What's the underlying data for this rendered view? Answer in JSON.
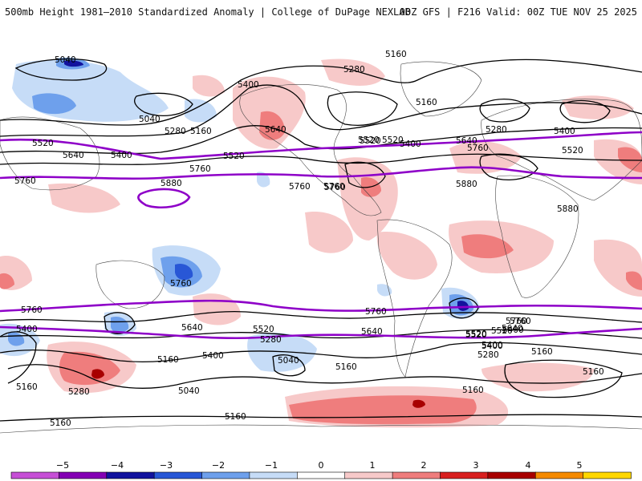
{
  "header": {
    "title": "500mb Height 1981–2010 Standardized Anomaly | College of DuPage NEXLAB",
    "run_info": "00Z GFS | F216 Valid: 00Z TUE NOV 25 2025"
  },
  "colors": {
    "ocean_land": "#ffffff",
    "contour_black": "#000000",
    "contour_purple": "#8e00c8",
    "anom_pos_1": "#f7c9c9",
    "anom_pos_2": "#ef7d7d",
    "anom_pos_3": "#d81f1f",
    "anom_pos_4": "#a80000",
    "anom_neg_1": "#c6dcf7",
    "anom_neg_2": "#6ea0ec",
    "anom_neg_3": "#2857d6",
    "anom_neg_4": "#12139e"
  },
  "contour_labels": [
    {
      "text": "5040",
      "id": "lbl-5040-a"
    },
    {
      "text": "5160",
      "id": "lbl-5160-a"
    },
    {
      "text": "5280",
      "id": "lbl-5280-a"
    },
    {
      "text": "5400",
      "id": "lbl-5400-a"
    },
    {
      "text": "5160",
      "id": "lbl-5160-b"
    },
    {
      "text": "5040",
      "id": "lbl-5040-b"
    },
    {
      "text": "5280",
      "id": "lbl-5280-b"
    },
    {
      "text": "5160",
      "id": "lbl-5160-c"
    },
    {
      "text": "5640",
      "id": "lbl-5640-a"
    },
    {
      "text": "5520",
      "id": "lbl-5520-a"
    },
    {
      "text": "5520",
      "id": "lbl-5520-b"
    },
    {
      "text": "5400",
      "id": "lbl-5400-b"
    },
    {
      "text": "5640",
      "id": "lbl-5640-b"
    },
    {
      "text": "5400",
      "id": "lbl-5400-c"
    },
    {
      "text": "5520",
      "id": "lbl-5520-c"
    },
    {
      "text": "5760",
      "id": "lbl-5760-a"
    },
    {
      "text": "5520",
      "id": "lbl-5520-d"
    },
    {
      "text": "5760",
      "id": "lbl-5760-b"
    },
    {
      "text": "5880",
      "id": "lbl-5880-a"
    },
    {
      "text": "5760",
      "id": "lbl-5760-c"
    },
    {
      "text": "5760",
      "id": "lbl-5760-d"
    },
    {
      "text": "5880",
      "id": "lbl-5880-b"
    },
    {
      "text": "5520",
      "id": "lbl-5520-e"
    },
    {
      "text": "5400",
      "id": "lbl-5400-d"
    },
    {
      "text": "5280",
      "id": "lbl-5280-c"
    },
    {
      "text": "5640",
      "id": "lbl-5640-c"
    },
    {
      "text": "5760",
      "id": "lbl-5760-e"
    },
    {
      "text": "5760",
      "id": "lbl-5760-f"
    },
    {
      "text": "5880",
      "id": "lbl-5880-c"
    },
    {
      "text": "5520",
      "id": "lbl-5520-f"
    },
    {
      "text": "5400",
      "id": "lbl-5400-e"
    },
    {
      "text": "5760",
      "id": "lbl-5760-g"
    },
    {
      "text": "5760",
      "id": "lbl-5760-h"
    },
    {
      "text": "5760",
      "id": "lbl-5760-i"
    },
    {
      "text": "5760",
      "id": "lbl-5760-j"
    },
    {
      "text": "5640",
      "id": "lbl-5640-d"
    },
    {
      "text": "5520",
      "id": "lbl-5520-g"
    },
    {
      "text": "5520",
      "id": "lbl-5520-h"
    },
    {
      "text": "5280",
      "id": "lbl-5280-d"
    },
    {
      "text": "5400",
      "id": "lbl-5400-f"
    },
    {
      "text": "5040",
      "id": "lbl-5040-c"
    },
    {
      "text": "5160",
      "id": "lbl-5160-d"
    },
    {
      "text": "5640",
      "id": "lbl-5640-e"
    },
    {
      "text": "5520",
      "id": "lbl-5520-i"
    },
    {
      "text": "5400",
      "id": "lbl-5400-g"
    },
    {
      "text": "5280",
      "id": "lbl-5280-e"
    },
    {
      "text": "5160",
      "id": "lbl-5160-e"
    },
    {
      "text": "5400",
      "id": "lbl-5400-h"
    },
    {
      "text": "5520",
      "id": "lbl-5520-j"
    },
    {
      "text": "5280",
      "id": "lbl-5280-f"
    },
    {
      "text": "5160",
      "id": "lbl-5160-f"
    },
    {
      "text": "5040",
      "id": "lbl-5040-d"
    },
    {
      "text": "5160",
      "id": "lbl-5160-g"
    },
    {
      "text": "5160",
      "id": "lbl-5160-h"
    },
    {
      "text": "5160",
      "id": "lbl-5160-i"
    },
    {
      "text": "5760",
      "id": "lbl-5760-k"
    },
    {
      "text": "5640",
      "id": "lbl-5640-f"
    },
    {
      "text": "5400",
      "id": "lbl-5400-i"
    },
    {
      "text": "5160",
      "id": "lbl-5160-j"
    },
    {
      "text": "5160",
      "id": "lbl-5160-k"
    }
  ],
  "legend": {
    "ticks": [
      "−5",
      "−4",
      "−3",
      "−2",
      "−1",
      "0",
      "1",
      "2",
      "3",
      "4",
      "5"
    ],
    "colors": [
      "#c64fd6",
      "#8400b4",
      "#12139e",
      "#2857d6",
      "#6ea0ec",
      "#c6dcf7",
      "#ffffff",
      "#f7c9c9",
      "#ef7d7d",
      "#d81f1f",
      "#a80000",
      "#f58a00",
      "#ffd700"
    ]
  }
}
